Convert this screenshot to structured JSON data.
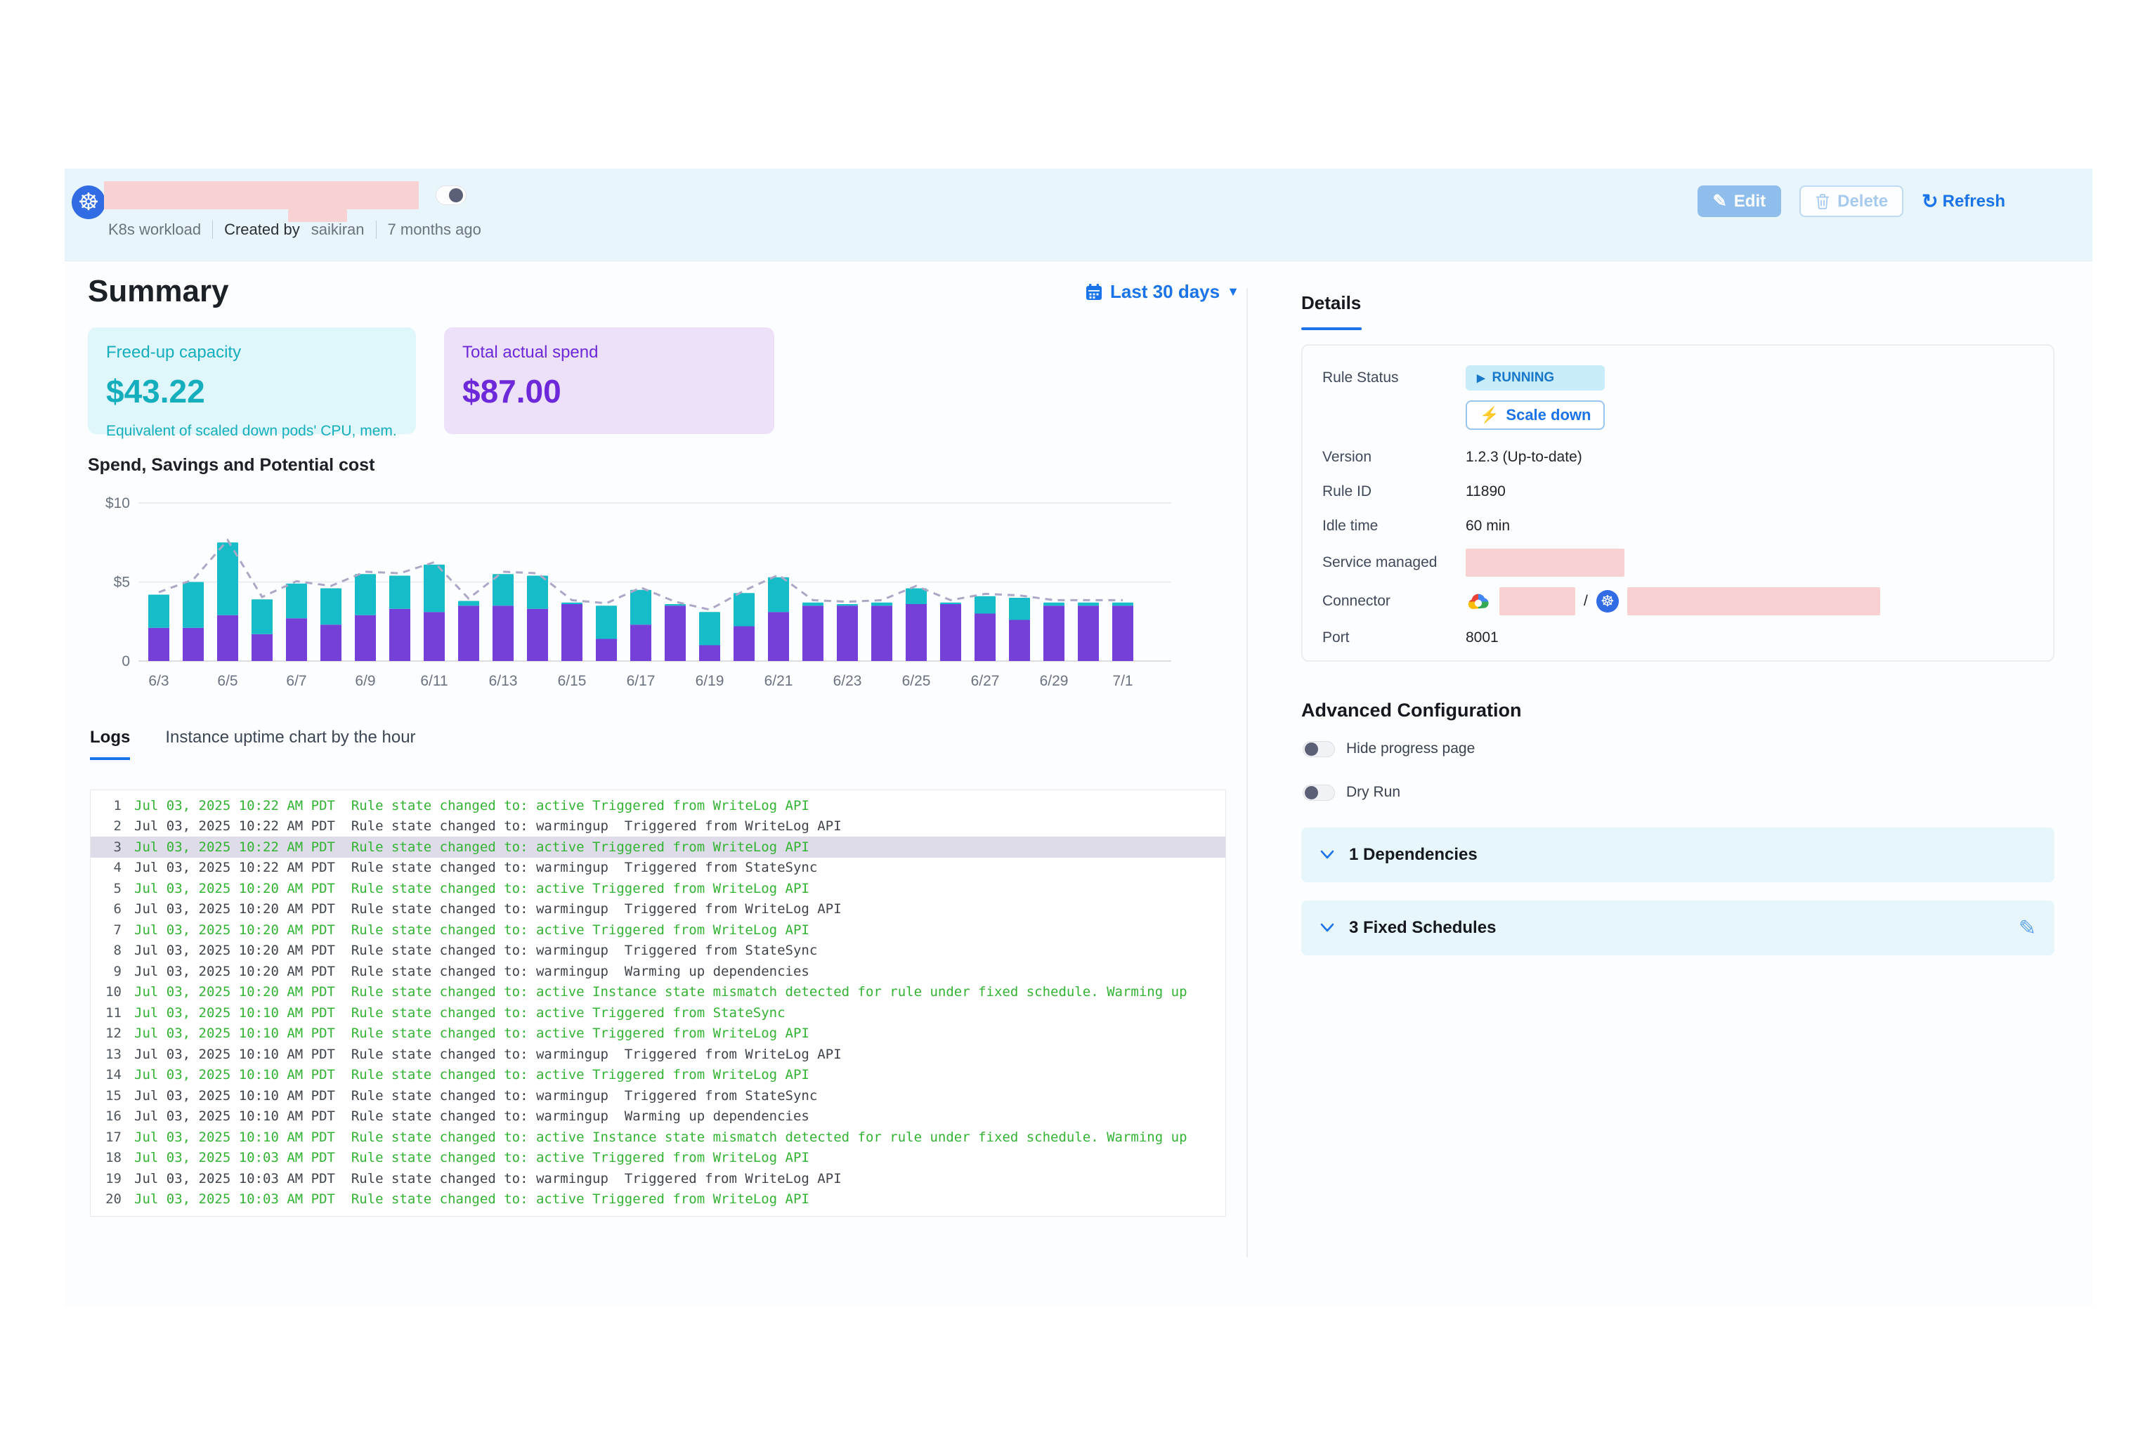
{
  "header": {
    "workload_type": "K8s workload",
    "created_by_label": "Created by",
    "created_by_user": "saikiran",
    "created_ago": "7 months ago",
    "buttons": {
      "edit": "Edit",
      "delete": "Delete",
      "refresh": "Refresh"
    }
  },
  "summary": {
    "title": "Summary",
    "date_range": "Last 30 days",
    "cards": [
      {
        "label": "Freed-up capacity",
        "value": "$43.22",
        "caption": "Equivalent of scaled down pods' CPU, mem."
      },
      {
        "label": "Total actual spend",
        "value": "$87.00"
      }
    ]
  },
  "chart_data": {
    "type": "bar",
    "stacked": true,
    "title": "Spend, Savings and Potential cost",
    "categories": [
      "6/3",
      "6/4",
      "6/5",
      "6/6",
      "6/7",
      "6/8",
      "6/9",
      "6/10",
      "6/11",
      "6/12",
      "6/13",
      "6/14",
      "6/15",
      "6/16",
      "6/17",
      "6/18",
      "6/19",
      "6/20",
      "6/21",
      "6/22",
      "6/23",
      "6/24",
      "6/25",
      "6/26",
      "6/27",
      "6/28",
      "6/29",
      "6/30",
      "7/1"
    ],
    "x_tick_labels": [
      "6/3",
      "6/5",
      "6/7",
      "6/9",
      "6/11",
      "6/13",
      "6/15",
      "6/17",
      "6/19",
      "6/21",
      "6/23",
      "6/25",
      "6/27",
      "6/29",
      "7/1"
    ],
    "series": [
      {
        "name": "Spend",
        "type": "bar",
        "color": "#7440D8",
        "values": [
          2.1,
          2.1,
          2.9,
          1.7,
          2.7,
          2.3,
          2.9,
          3.3,
          3.1,
          3.5,
          3.5,
          3.3,
          3.6,
          1.4,
          2.3,
          3.5,
          1.0,
          2.2,
          3.1,
          3.5,
          3.5,
          3.5,
          3.6,
          3.6,
          3.0,
          2.6,
          3.5,
          3.5,
          3.5
        ]
      },
      {
        "name": "Savings",
        "type": "bar",
        "color": "#17BCC9",
        "values": [
          2.1,
          2.9,
          4.6,
          2.2,
          2.2,
          2.3,
          2.6,
          2.1,
          3.0,
          0.3,
          2.0,
          2.1,
          0.1,
          2.1,
          2.2,
          0.1,
          2.1,
          2.1,
          2.2,
          0.2,
          0.1,
          0.2,
          1.0,
          0.1,
          1.1,
          1.4,
          0.2,
          0.2,
          0.2
        ]
      },
      {
        "name": "Potential cost",
        "type": "dashed-line",
        "color": "#ACA7C6",
        "values": [
          4.35,
          5.15,
          7.65,
          4.05,
          5.05,
          4.75,
          5.65,
          5.55,
          6.25,
          3.95,
          5.65,
          5.55,
          3.85,
          3.65,
          4.65,
          3.75,
          3.25,
          4.45,
          5.45,
          3.85,
          3.75,
          3.85,
          4.75,
          3.85,
          4.25,
          4.15,
          3.85,
          3.85,
          3.85
        ]
      }
    ],
    "ylim": [
      0,
      10
    ],
    "y_tick_values": [
      10,
      5,
      0
    ],
    "y_tick_labels": [
      "$10",
      "$5",
      "0"
    ],
    "grid": true,
    "legend": "none"
  },
  "tabs": [
    {
      "label": "Logs",
      "active": true
    },
    {
      "label": "Instance uptime chart by the hour",
      "active": false
    }
  ],
  "logs": {
    "rows": [
      {
        "n": 1,
        "time": "Jul 03, 2025 10:22 AM PDT",
        "message": "Rule state changed to: active Triggered from WriteLog API",
        "state": "active",
        "highlighted": false
      },
      {
        "n": 2,
        "time": "Jul 03, 2025 10:22 AM PDT",
        "message": "Rule state changed to: warmingup  Triggered from WriteLog API",
        "state": "warmingup",
        "highlighted": false
      },
      {
        "n": 3,
        "time": "Jul 03, 2025 10:22 AM PDT",
        "message": "Rule state changed to: active Triggered from WriteLog API",
        "state": "active",
        "highlighted": true
      },
      {
        "n": 4,
        "time": "Jul 03, 2025 10:22 AM PDT",
        "message": "Rule state changed to: warmingup  Triggered from StateSync",
        "state": "warmingup",
        "highlighted": false
      },
      {
        "n": 5,
        "time": "Jul 03, 2025 10:20 AM PDT",
        "message": "Rule state changed to: active Triggered from WriteLog API",
        "state": "active",
        "highlighted": false
      },
      {
        "n": 6,
        "time": "Jul 03, 2025 10:20 AM PDT",
        "message": "Rule state changed to: warmingup  Triggered from WriteLog API",
        "state": "warmingup",
        "highlighted": false
      },
      {
        "n": 7,
        "time": "Jul 03, 2025 10:20 AM PDT",
        "message": "Rule state changed to: active Triggered from WriteLog API",
        "state": "active",
        "highlighted": false
      },
      {
        "n": 8,
        "time": "Jul 03, 2025 10:20 AM PDT",
        "message": "Rule state changed to: warmingup  Triggered from StateSync",
        "state": "warmingup",
        "highlighted": false
      },
      {
        "n": 9,
        "time": "Jul 03, 2025 10:20 AM PDT",
        "message": "Rule state changed to: warmingup  Warming up dependencies",
        "state": "warmingup",
        "highlighted": false
      },
      {
        "n": 10,
        "time": "Jul 03, 2025 10:20 AM PDT",
        "message": "Rule state changed to: active Instance state mismatch detected for rule under fixed schedule. Warming up",
        "state": "active",
        "highlighted": false
      },
      {
        "n": 11,
        "time": "Jul 03, 2025 10:10 AM PDT",
        "message": "Rule state changed to: active Triggered from StateSync",
        "state": "active",
        "highlighted": false
      },
      {
        "n": 12,
        "time": "Jul 03, 2025 10:10 AM PDT",
        "message": "Rule state changed to: active Triggered from WriteLog API",
        "state": "active",
        "highlighted": false
      },
      {
        "n": 13,
        "time": "Jul 03, 2025 10:10 AM PDT",
        "message": "Rule state changed to: warmingup  Triggered from WriteLog API",
        "state": "warmingup",
        "highlighted": false
      },
      {
        "n": 14,
        "time": "Jul 03, 2025 10:10 AM PDT",
        "message": "Rule state changed to: active Triggered from WriteLog API",
        "state": "active",
        "highlighted": false
      },
      {
        "n": 15,
        "time": "Jul 03, 2025 10:10 AM PDT",
        "message": "Rule state changed to: warmingup  Triggered from StateSync",
        "state": "warmingup",
        "highlighted": false
      },
      {
        "n": 16,
        "time": "Jul 03, 2025 10:10 AM PDT",
        "message": "Rule state changed to: warmingup  Warming up dependencies",
        "state": "warmingup",
        "highlighted": false
      },
      {
        "n": 17,
        "time": "Jul 03, 2025 10:10 AM PDT",
        "message": "Rule state changed to: active Instance state mismatch detected for rule under fixed schedule. Warming up",
        "state": "active",
        "highlighted": false
      },
      {
        "n": 18,
        "time": "Jul 03, 2025 10:03 AM PDT",
        "message": "Rule state changed to: active Triggered from WriteLog API",
        "state": "active",
        "highlighted": false
      },
      {
        "n": 19,
        "time": "Jul 03, 2025 10:03 AM PDT",
        "message": "Rule state changed to: warmingup  Triggered from WriteLog API",
        "state": "warmingup",
        "highlighted": false
      },
      {
        "n": 20,
        "time": "Jul 03, 2025 10:03 AM PDT",
        "message": "Rule state changed to: active Triggered from WriteLog API",
        "state": "active",
        "highlighted": false
      }
    ]
  },
  "details": {
    "tab_label": "Details",
    "rule_status_label": "Rule Status",
    "rule_status_value": "RUNNING",
    "scale_down_label": "Scale down",
    "connector_separator": "/",
    "fields": [
      {
        "label": "Version",
        "value": "1.2.3 (Up-to-date)"
      },
      {
        "label": "Rule ID",
        "value": "11890"
      },
      {
        "label": "Idle time",
        "value": "60 min"
      },
      {
        "label": "Service managed",
        "value": ""
      },
      {
        "label": "Connector",
        "value": ""
      },
      {
        "label": "Port",
        "value": "8001"
      }
    ]
  },
  "advanced": {
    "title": "Advanced Configuration",
    "toggles": [
      {
        "label": "Hide progress page",
        "on": false
      },
      {
        "label": "Dry Run",
        "on": false
      }
    ],
    "panels": [
      {
        "label": "1 Dependencies",
        "editable": false
      },
      {
        "label": "3 Fixed Schedules",
        "editable": true
      }
    ]
  },
  "colors": {
    "accent_blue": "#1A73E8",
    "header_band": "#E8F6FB",
    "teal_card_bg": "#DFF6FA",
    "teal_text": "#14AEBD",
    "purple_card_bg": "#ECE1F9",
    "purple_text": "#6D28D9",
    "bar_spend": "#7440D8",
    "bar_savings": "#17BCC9",
    "potential_line": "#ACA7C6",
    "log_active_green": "#33B333",
    "log_warmingup": "#3F444C",
    "log_highlight": "#DDDCE8",
    "redaction_pink": "#F8D2D2",
    "running_badge_bg": "#C8ECFA"
  }
}
